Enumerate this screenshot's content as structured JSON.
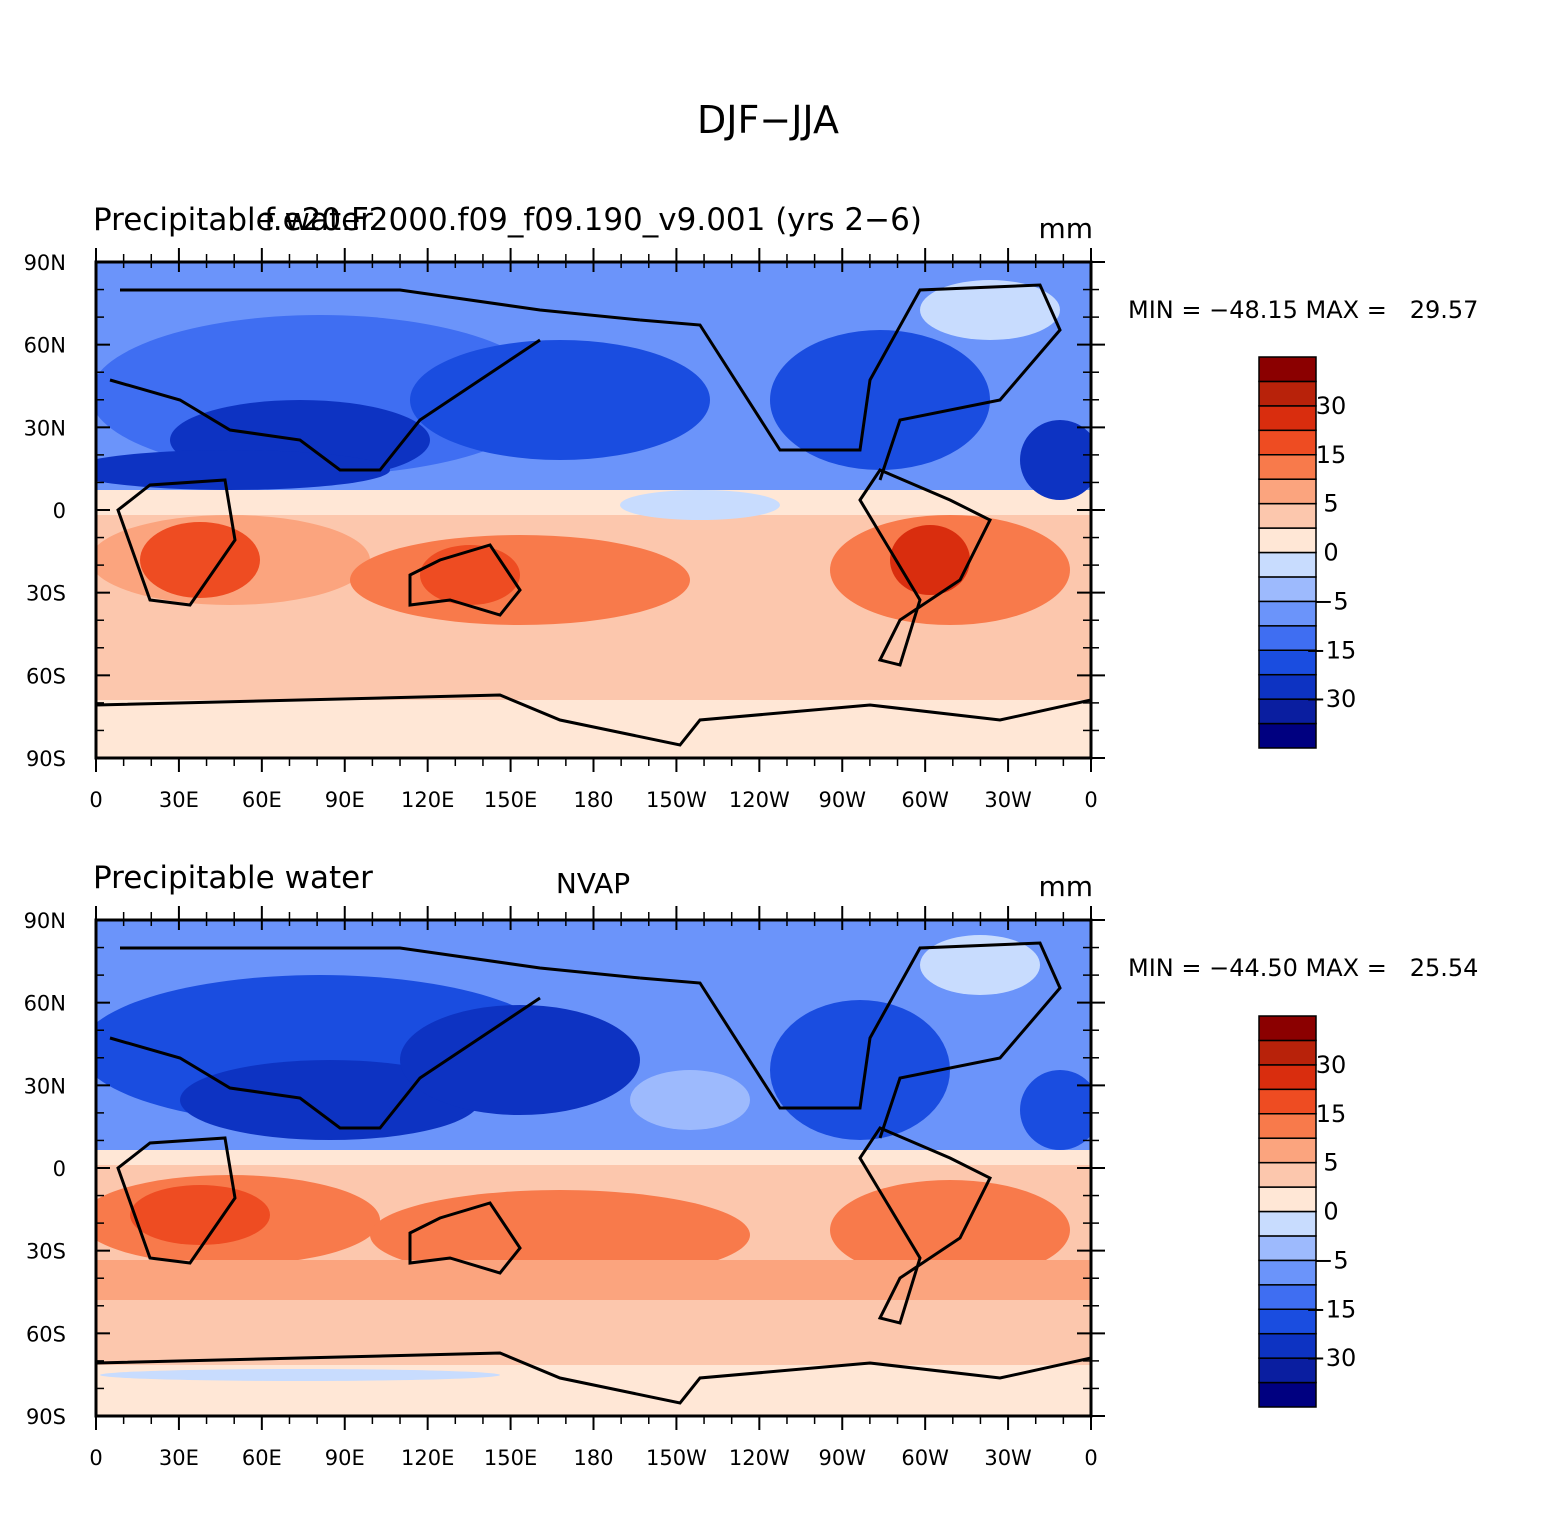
{
  "title": "DJF−JJA",
  "panels": [
    {
      "left_title": "Precipitable water",
      "center_title": "f.e20.F2000.f09_f09.190_v9.001 (yrs 2−6)",
      "units": "mm",
      "stats": "MIN = −48.15 MAX =   29.57"
    },
    {
      "left_title": "Precipitable water",
      "center_title": "NVAP",
      "units": "mm",
      "stats": "MIN = −44.50 MAX =   25.54"
    }
  ],
  "lat_ticks": [
    "90N",
    "60N",
    "30N",
    "0",
    "30S",
    "60S",
    "90S"
  ],
  "lon_ticks": [
    "0",
    "30E",
    "60E",
    "90E",
    "120E",
    "150E",
    "180",
    "150W",
    "120W",
    "90W",
    "60W",
    "30W",
    "0"
  ],
  "colorbar": {
    "colors": [
      "#000080",
      "#0a1ea0",
      "#0d33c2",
      "#1a4de0",
      "#3f6ef2",
      "#6b94fa",
      "#9dbafd",
      "#c8dcfe",
      "#ffe7d6",
      "#fcc7ad",
      "#fba47e",
      "#f87a4b",
      "#ee4c22",
      "#d92d0e",
      "#b8220a",
      "#8b0000"
    ],
    "labels": [
      "30",
      "15",
      "5",
      "0",
      "−5",
      "−15",
      "−30"
    ]
  },
  "chart_data": {
    "type": "contour-map",
    "field": "Precipitable water difference (DJF−JJA)",
    "units": "mm",
    "contour_levels": [
      -40,
      -30,
      -25,
      -20,
      -15,
      -10,
      -5,
      -2,
      0,
      2,
      5,
      10,
      15,
      20,
      25,
      30,
      40
    ],
    "panels": [
      {
        "name": "f.e20.F2000.f09_f09.190_v9.001 (yrs 2−6)",
        "min": -48.15,
        "max": 29.57
      },
      {
        "name": "NVAP",
        "min": -44.5,
        "max": 25.54
      }
    ],
    "xlim": [
      "0",
      "0"
    ],
    "ylim": [
      "90S",
      "90N"
    ]
  }
}
